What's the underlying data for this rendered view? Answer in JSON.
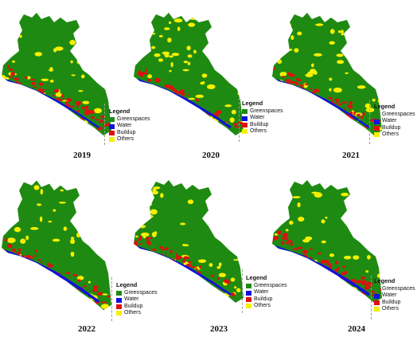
{
  "colors": {
    "greenspaces": "#1f8a12",
    "water": "#1010e0",
    "buildup": "#e01010",
    "others": "#f5f000"
  },
  "legend": {
    "title": "Legend",
    "items": [
      {
        "label": "Greenspaces",
        "color": "#1f8a12"
      },
      {
        "label": "Water",
        "color": "#1010e0"
      },
      {
        "label": "Buildup",
        "color": "#e01010"
      },
      {
        "label": "Others",
        "color": "#f5f000"
      }
    ]
  },
  "maps": [
    {
      "year": "2019",
      "buildup_level": 0.55,
      "others_level": 0.55,
      "water_level": 0.35
    },
    {
      "year": "2020",
      "buildup_level": 0.35,
      "others_level": 0.75,
      "water_level": 0.6
    },
    {
      "year": "2021",
      "buildup_level": 0.5,
      "others_level": 0.7,
      "water_level": 0.4
    },
    {
      "year": "2022",
      "buildup_level": 0.45,
      "others_level": 0.55,
      "water_level": 0.75
    },
    {
      "year": "2023",
      "buildup_level": 0.4,
      "others_level": 0.7,
      "water_level": 0.5
    },
    {
      "year": "2024",
      "buildup_level": 0.65,
      "others_level": 0.5,
      "water_level": 0.8
    }
  ]
}
